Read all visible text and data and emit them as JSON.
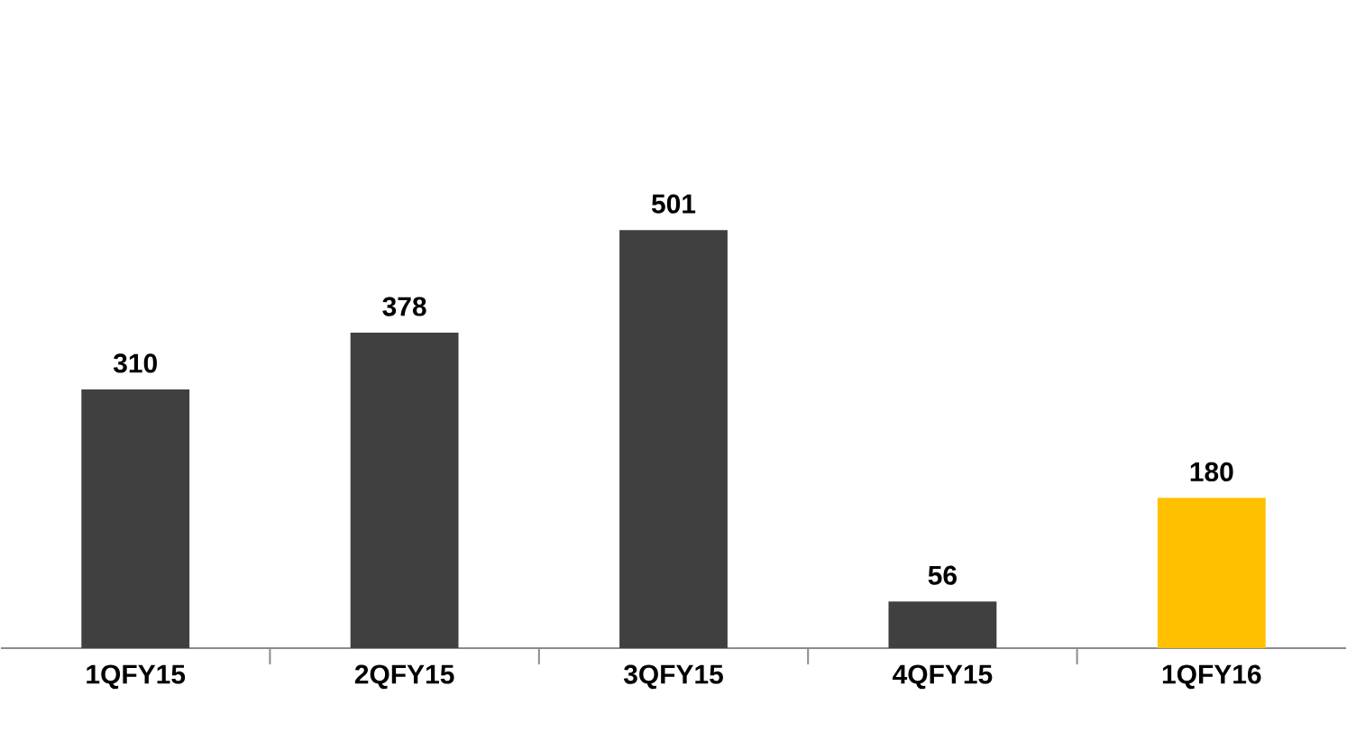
{
  "chart_data": {
    "type": "bar",
    "categories": [
      "1QFY15",
      "2QFY15",
      "3QFY15",
      "4QFY15",
      "1QFY16"
    ],
    "values": [
      310,
      378,
      501,
      56,
      180
    ],
    "colors": [
      "#404040",
      "#404040",
      "#404040",
      "#404040",
      "#ffc000"
    ],
    "tick_labels": "x",
    "data_labels": true
  }
}
